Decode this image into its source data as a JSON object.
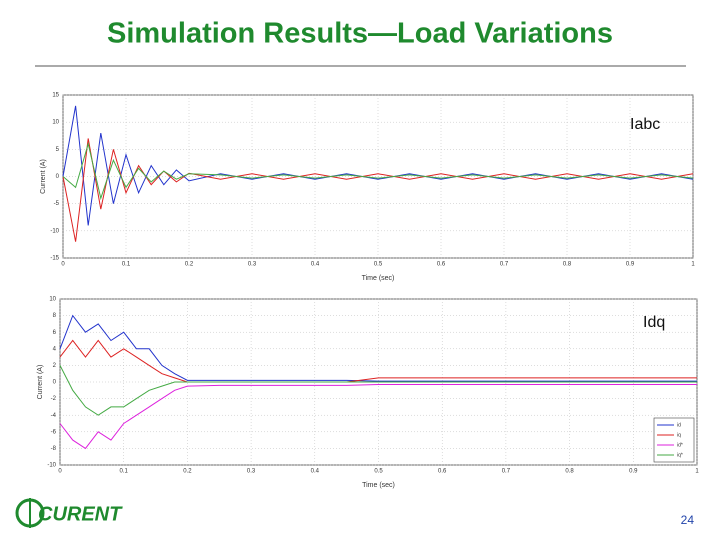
{
  "title": "Simulation Results—Load Variations",
  "logo": "CURENT",
  "page_number": "24",
  "chart_data": [
    {
      "type": "line",
      "annotation": "Iabc",
      "xlabel": "Time (sec)",
      "ylabel": "Current (A)",
      "xlim": [
        0,
        1
      ],
      "xticks": [
        0,
        0.1,
        0.2,
        0.3,
        0.4,
        0.5,
        0.6,
        0.7,
        0.8,
        0.9,
        1
      ],
      "ylim": [
        -15,
        15
      ],
      "yticks": [
        -15,
        -10,
        -5,
        0,
        5,
        10,
        15
      ],
      "grid": true,
      "x": [
        0,
        0.02,
        0.04,
        0.06,
        0.08,
        0.1,
        0.12,
        0.14,
        0.16,
        0.18,
        0.2,
        0.25,
        0.3,
        0.35,
        0.4,
        0.45,
        0.5,
        0.55,
        0.6,
        0.65,
        0.7,
        0.75,
        0.8,
        0.85,
        0.9,
        0.95,
        1
      ],
      "series": [
        {
          "color": "#2233cc",
          "values": [
            0,
            13,
            -9,
            8,
            -5,
            4,
            -3,
            2,
            -1.5,
            1.2,
            -0.8,
            0.5,
            -0.5,
            0.5,
            -0.5,
            0.5,
            -0.5,
            0.5,
            -0.5,
            0.5,
            -0.5,
            0.5,
            -0.5,
            0.5,
            -0.5,
            0.5,
            -0.5
          ]
        },
        {
          "color": "#dd2222",
          "values": [
            0,
            -12,
            7,
            -6,
            5,
            -3,
            2,
            -1.5,
            1,
            -1,
            0.6,
            -0.5,
            0.5,
            -0.5,
            0.5,
            -0.5,
            0.5,
            -0.5,
            0.5,
            -0.5,
            0.5,
            -0.5,
            0.5,
            -0.5,
            0.5,
            -0.5,
            0.5
          ]
        },
        {
          "color": "#44aa44",
          "values": [
            0,
            -2,
            6,
            -4,
            3,
            -2,
            1.5,
            -1,
            1,
            -0.5,
            0.5,
            0.3,
            -0.3,
            0.3,
            -0.3,
            0.3,
            -0.3,
            0.3,
            -0.3,
            0.3,
            -0.3,
            0.3,
            -0.3,
            0.3,
            -0.3,
            0.3,
            -0.3
          ]
        }
      ]
    },
    {
      "type": "line",
      "annotation": "Idq",
      "xlabel": "Time (sec)",
      "ylabel": "Current (A)",
      "xlim": [
        0,
        1
      ],
      "xticks": [
        0,
        0.1,
        0.2,
        0.3,
        0.4,
        0.5,
        0.6,
        0.7,
        0.8,
        0.9,
        1
      ],
      "ylim": [
        -10,
        10
      ],
      "yticks": [
        -10,
        -8,
        -6,
        -4,
        -2,
        0,
        2,
        4,
        6,
        8,
        10
      ],
      "grid": true,
      "legend": "lower right",
      "x": [
        0,
        0.02,
        0.04,
        0.06,
        0.08,
        0.1,
        0.12,
        0.14,
        0.16,
        0.18,
        0.2,
        0.25,
        0.3,
        0.35,
        0.4,
        0.45,
        0.5,
        0.55,
        0.6,
        0.65,
        0.7,
        0.75,
        0.8,
        0.85,
        0.9,
        0.95,
        1
      ],
      "series": [
        {
          "name": "id",
          "color": "#2233cc",
          "values": [
            4,
            8,
            6,
            7,
            5,
            6,
            4,
            4,
            2,
            1,
            0.2,
            0.2,
            0.2,
            0.2,
            0.2,
            0.2,
            0.1,
            0.1,
            0.1,
            0.1,
            0.1,
            0.1,
            0.1,
            0.1,
            0.1,
            0.1,
            0.1
          ]
        },
        {
          "name": "iq",
          "color": "#dd2222",
          "values": [
            3,
            5,
            3,
            5,
            3,
            4,
            3,
            2,
            1,
            0.5,
            0,
            0,
            0,
            0,
            0,
            0,
            0.5,
            0.5,
            0.5,
            0.5,
            0.5,
            0.5,
            0.5,
            0.5,
            0.5,
            0.5,
            0.5
          ]
        },
        {
          "name": "id*",
          "color": "#dd22dd",
          "values": [
            -5,
            -7,
            -8,
            -6,
            -7,
            -5,
            -4,
            -3,
            -2,
            -1,
            -0.5,
            -0.4,
            -0.4,
            -0.4,
            -0.4,
            -0.4,
            -0.3,
            -0.3,
            -0.3,
            -0.3,
            -0.3,
            -0.3,
            -0.3,
            -0.3,
            -0.3,
            -0.3,
            -0.3
          ]
        },
        {
          "name": "iq*",
          "color": "#44aa44",
          "values": [
            2,
            -1,
            -3,
            -4,
            -3,
            -3,
            -2,
            -1,
            -0.5,
            0,
            0,
            0,
            0,
            0,
            0,
            0,
            0,
            0,
            0,
            0,
            0,
            0,
            0,
            0,
            0,
            0,
            0
          ]
        }
      ]
    }
  ]
}
